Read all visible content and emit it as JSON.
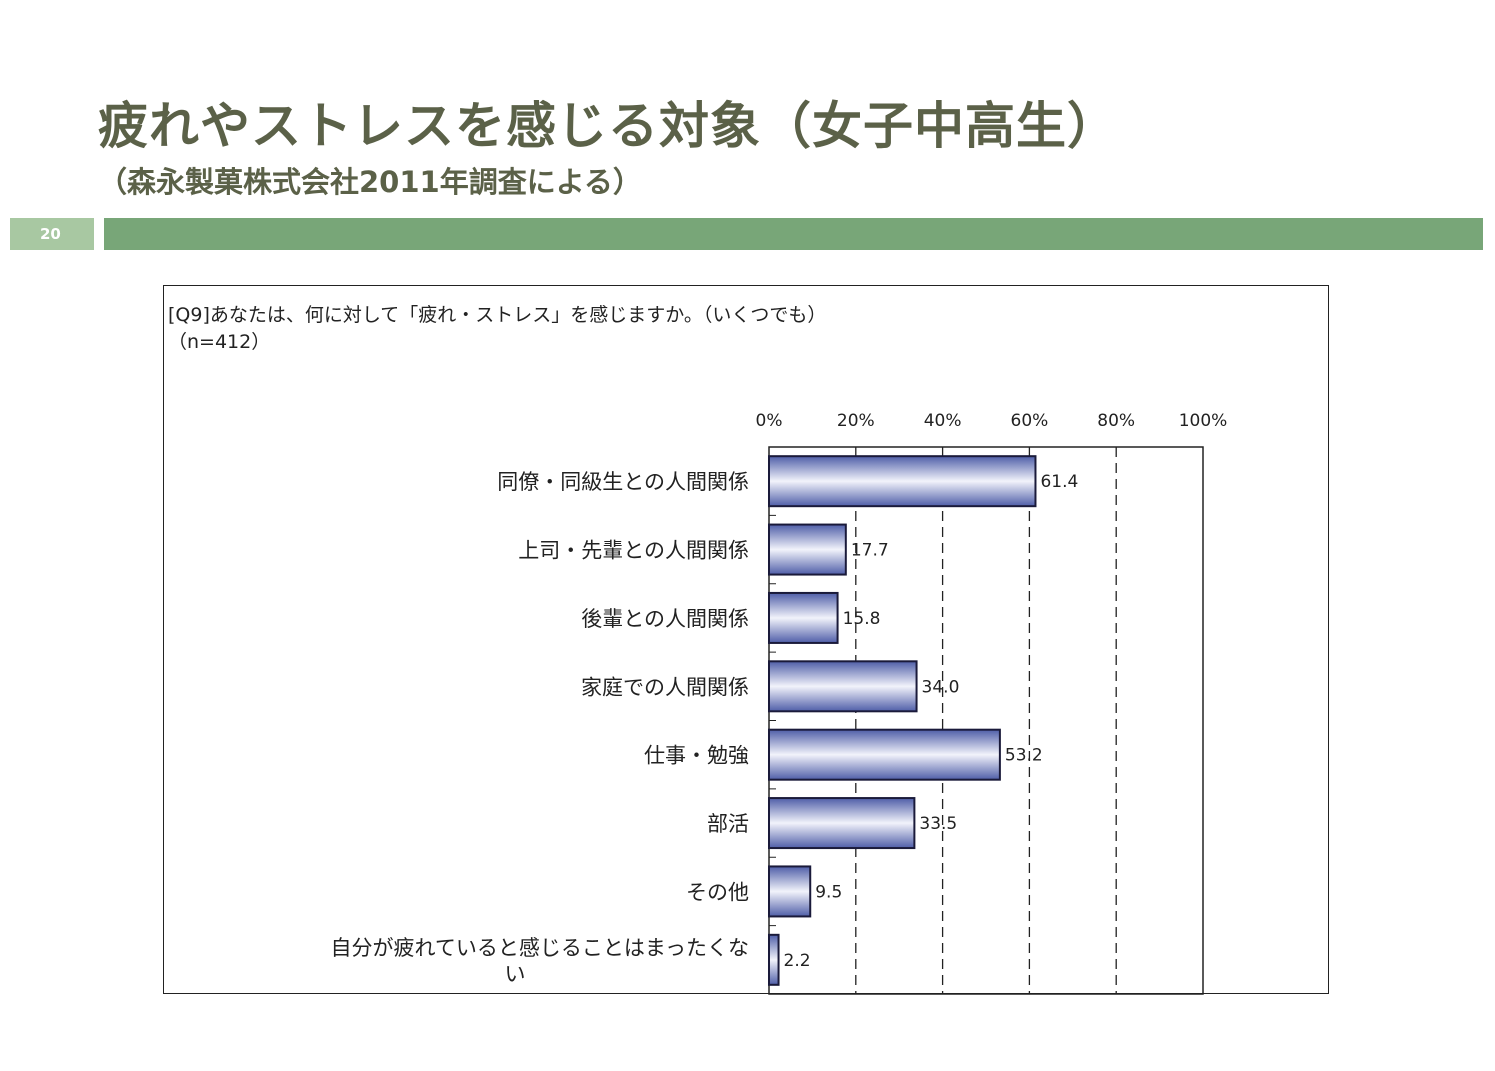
{
  "header": {
    "title": "疲れやストレスを感じる対象（女子中高生）",
    "subtitle": "（森永製菓株式会社2011年調査による）",
    "page_number": "20"
  },
  "colors": {
    "title_text": "#5b6148",
    "band_green": "#78a678",
    "page_tab_green": "#a8c8a2",
    "bar_fill_edge": "#4f5ea8",
    "bar_fill_center": "#f2f3fb",
    "bar_stroke": "#1a1a3a"
  },
  "chart_data": {
    "type": "bar",
    "orientation": "horizontal",
    "title": "[Q9]あなたは、何に対して「疲れ・ストレス」を感じますか。（いくつでも）",
    "subtitle": "（n=412）",
    "categories": [
      "同僚・同級生との人間関係",
      "上司・先輩との人間関係",
      "後輩との人間関係",
      "家庭での人間関係",
      "仕事・勉強",
      "部活",
      "その他",
      "自分が疲れていると感じることはまったくない"
    ],
    "category_label_lines": [
      [
        "同僚・同級生との人間関係"
      ],
      [
        "上司・先輩との人間関係"
      ],
      [
        "後輩との人間関係"
      ],
      [
        "家庭での人間関係"
      ],
      [
        "仕事・勉強"
      ],
      [
        "部活"
      ],
      [
        "その他"
      ],
      [
        "自分が疲れていると感じることはまったくな",
        "い"
      ]
    ],
    "values": [
      61.4,
      17.7,
      15.8,
      34.0,
      53.2,
      33.5,
      9.5,
      2.2
    ],
    "value_labels": [
      "61.4",
      "17.7",
      "15.8",
      "34.0",
      "53.2",
      "33.5",
      "9.5",
      "2.2"
    ],
    "xlim": [
      0,
      100
    ],
    "xticks": [
      0,
      20,
      40,
      60,
      80,
      100
    ],
    "xtick_labels": [
      "0%",
      "20%",
      "40%",
      "60%",
      "80%",
      "100%"
    ],
    "xaxis_position": "top",
    "grid": "dashed vertical",
    "legend": "none"
  }
}
